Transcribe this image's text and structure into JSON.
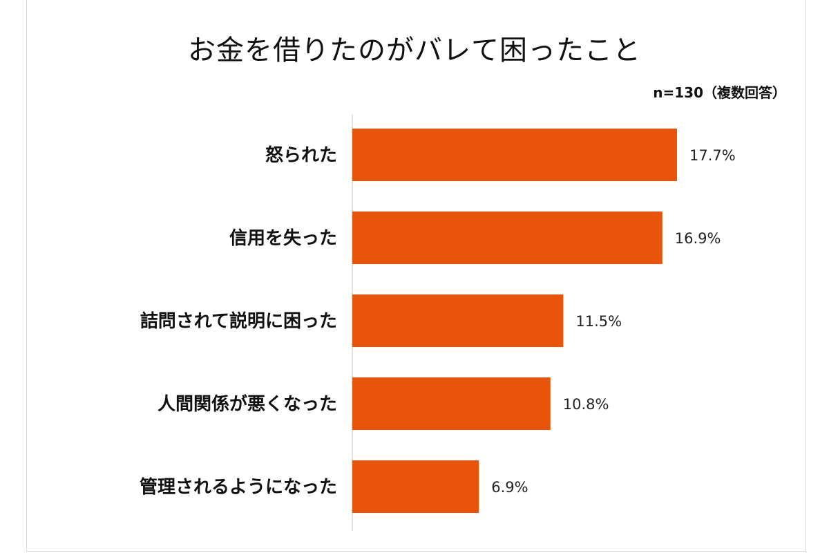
{
  "chart_data": {
    "type": "bar",
    "orientation": "horizontal",
    "title": "お金を借りたのがバレて困ったこと",
    "note": "n=130（複数回答）",
    "categories": [
      "怒られた",
      "信用を失った",
      "詰問されて説明に困った",
      "人間関係が悪くなった",
      "管理されるようになった"
    ],
    "values": [
      17.7,
      16.9,
      11.5,
      10.8,
      6.9
    ],
    "value_labels": [
      "17.7%",
      "16.9%",
      "11.5%",
      "10.8%",
      "6.9%"
    ],
    "unit": "%",
    "xlim": [
      0,
      20
    ],
    "grid": false,
    "legend": "none",
    "bar_color": "#E8550A"
  }
}
